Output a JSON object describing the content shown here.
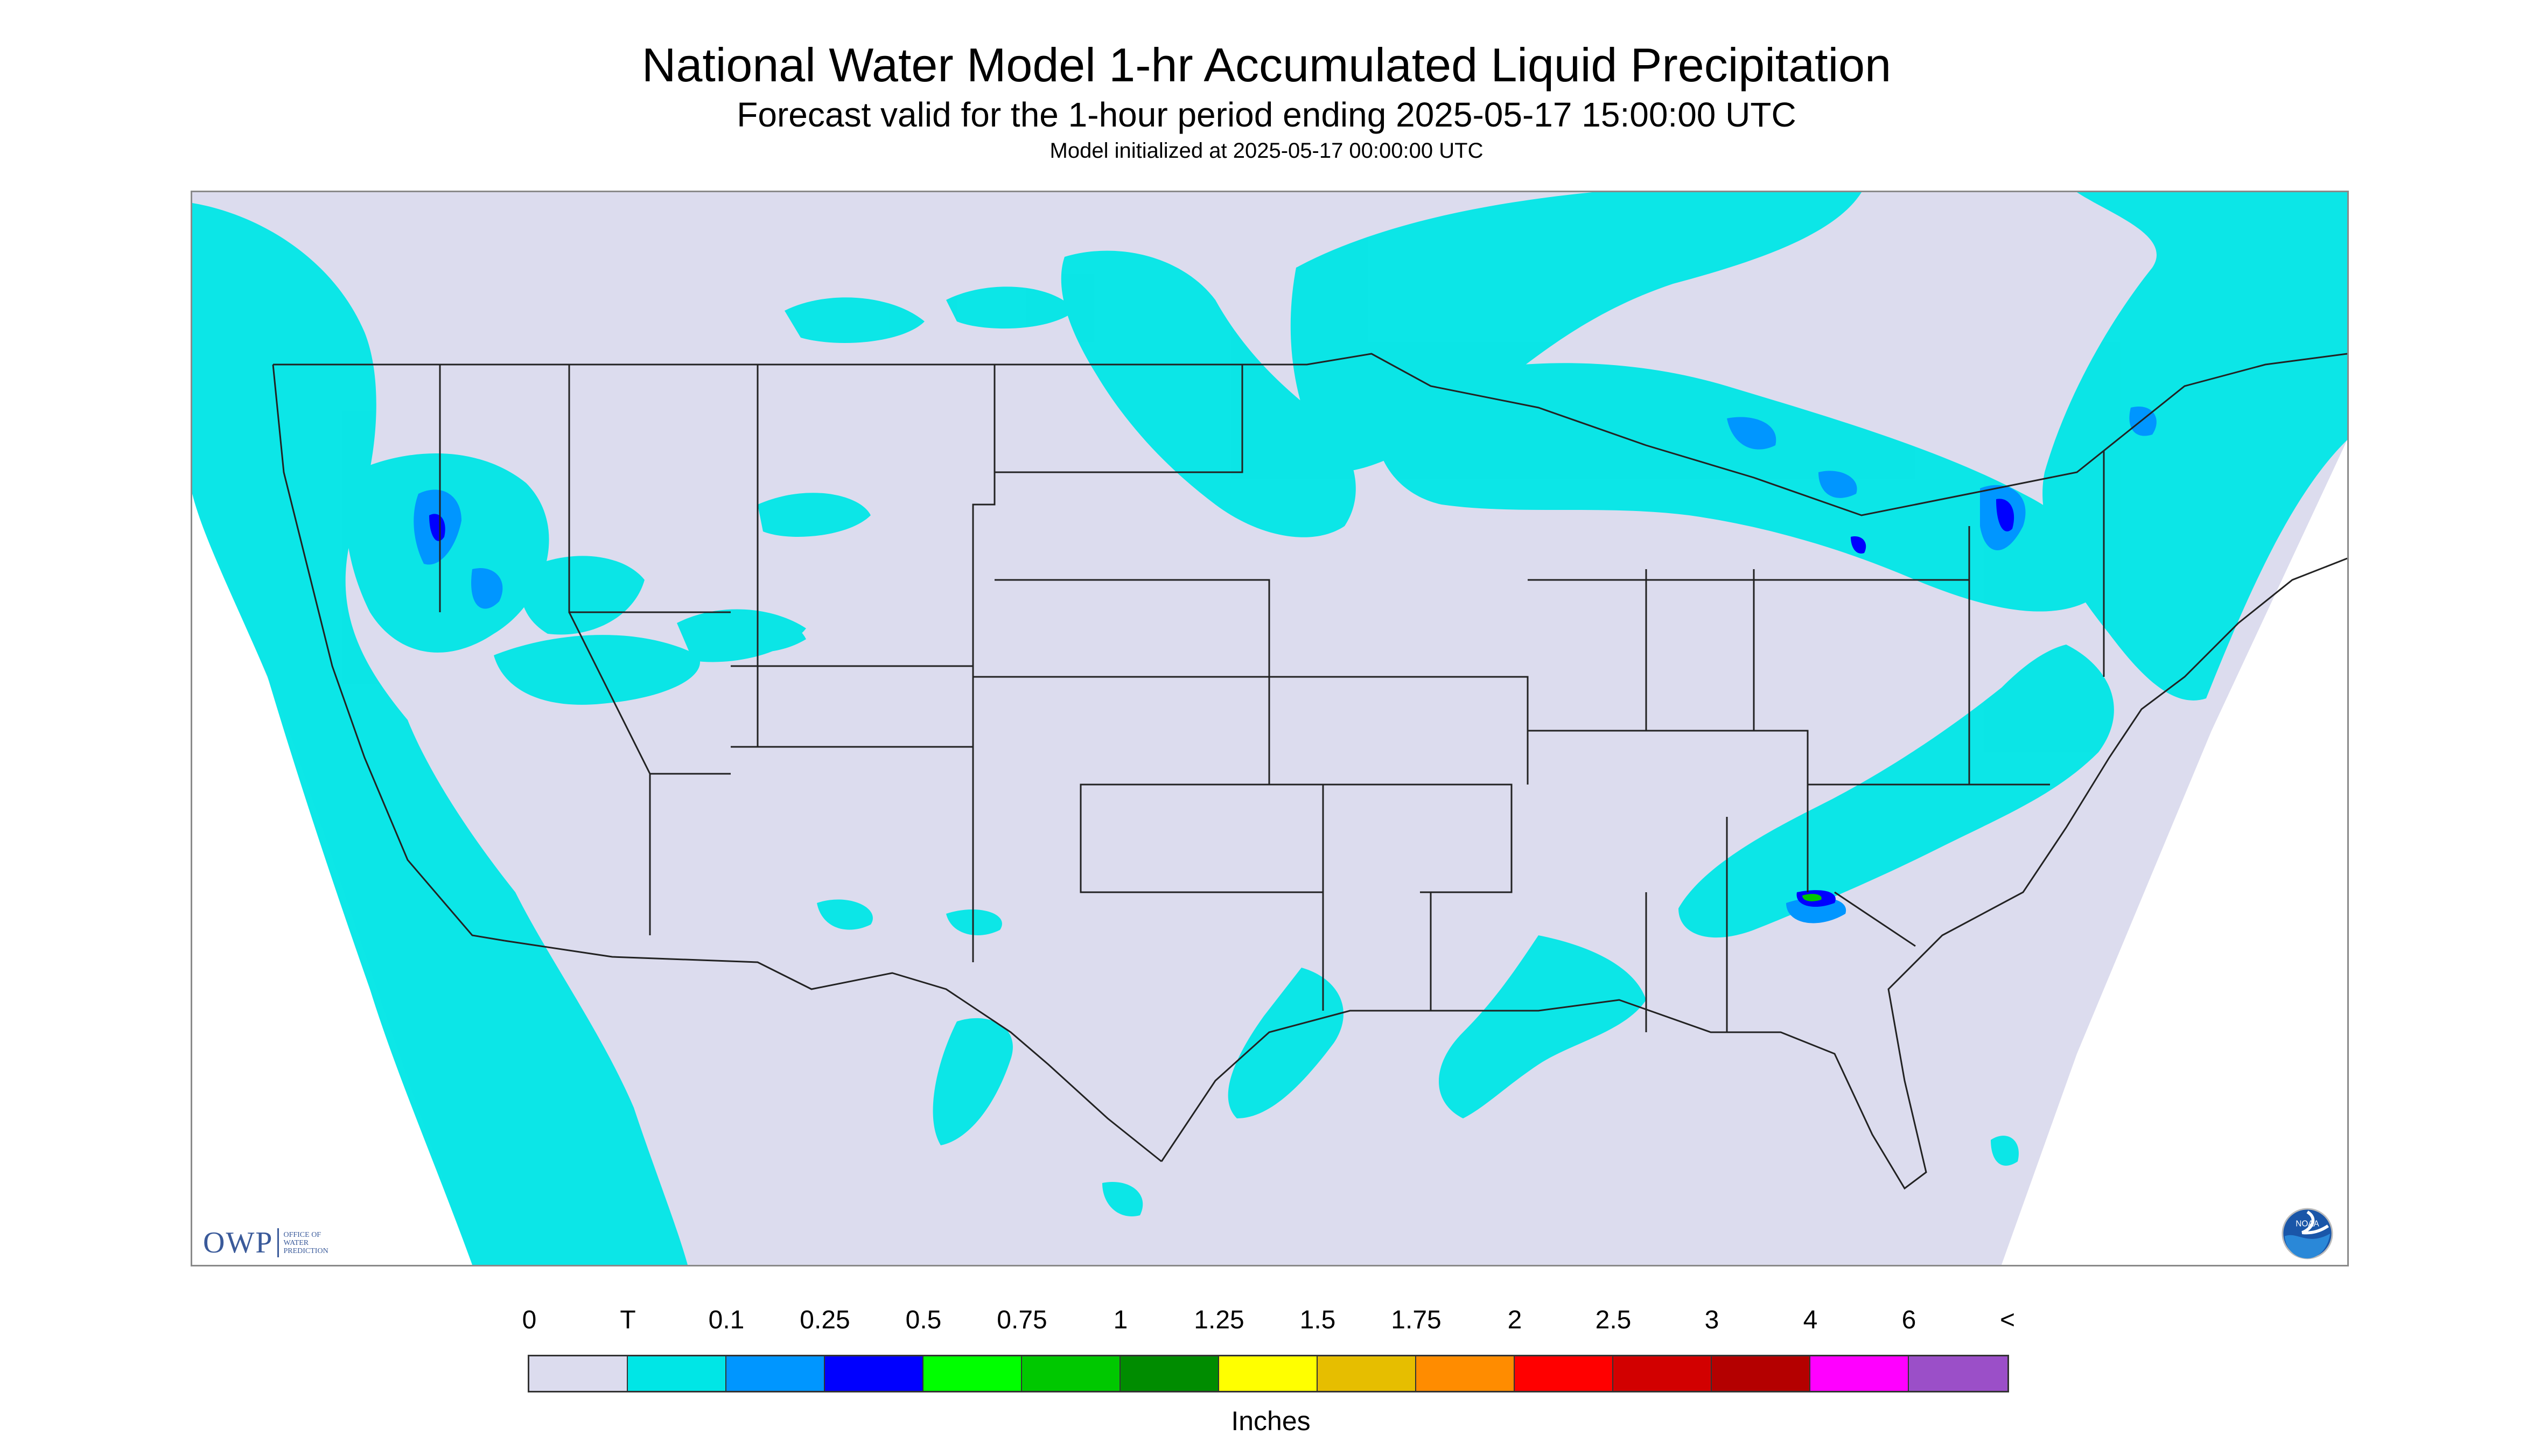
{
  "title": "National Water Model 1-hr Accumulated Liquid Precipitation",
  "subtitle": "Forecast valid for the 1-hour period ending 2025-05-17 15:00:00 UTC",
  "init_line": "Model initialized at 2025-05-17 00:00:00 UTC",
  "logos": {
    "owp_text": "OWP",
    "owp_small": [
      "OFFICE OF",
      "WATER",
      "PREDICTION"
    ],
    "noaa_text": "NOAA"
  },
  "legend": {
    "ticks": [
      "0",
      "T",
      "0.1",
      "0.25",
      "0.5",
      "0.75",
      "1",
      "1.25",
      "1.5",
      "1.75",
      "2",
      "2.5",
      "3",
      "4",
      "6",
      "<"
    ],
    "colors": [
      "#dcdcee",
      "#00e6e6",
      "#0096ff",
      "#0000ff",
      "#00ff00",
      "#00c800",
      "#008c00",
      "#ffff00",
      "#e6be00",
      "#ff8c00",
      "#ff0000",
      "#d20000",
      "#b40000",
      "#ff00ff",
      "#9b4fc8"
    ],
    "units": "Inches"
  },
  "map": {
    "background_color": "#dcdcee",
    "trace_color": "#00e6e6",
    "light_color": "#0096ff",
    "moderate_color": "#0000ff",
    "heavy_color": "#00c800",
    "outline_color": "#222222"
  }
}
